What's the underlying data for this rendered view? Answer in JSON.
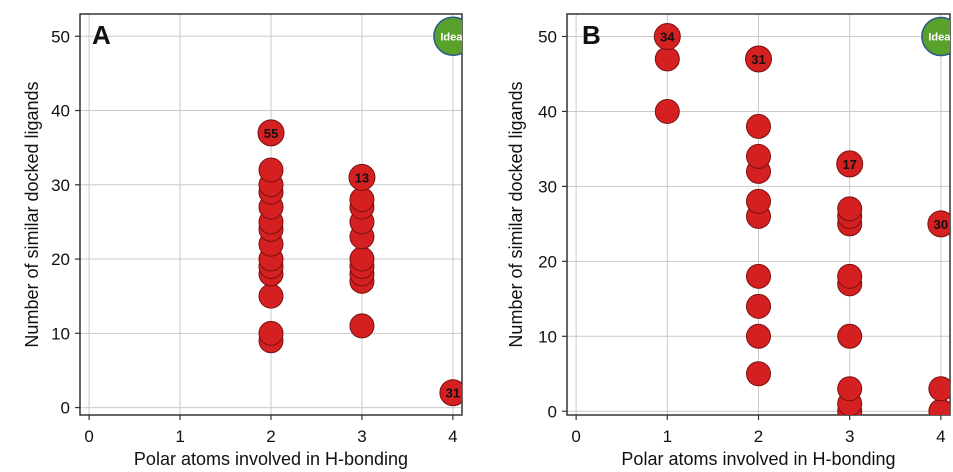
{
  "chart_data": [
    {
      "type": "scatter",
      "panel_label": "A",
      "xlabel": "Polar atoms involved in H-bonding",
      "ylabel": "Number of similar docked ligands",
      "xlim": [
        -0.1,
        4.1
      ],
      "ylim": [
        -1,
        53
      ],
      "xticks": [
        "0",
        "1",
        "2",
        "3",
        "4"
      ],
      "yticks": [
        "0",
        "10",
        "20",
        "30",
        "40",
        "50"
      ],
      "grid": true,
      "colors": {
        "points": "#d42020",
        "ideal": "#5aa12c",
        "grid": "#c9c9c9",
        "frame": "#333333"
      },
      "ideal": {
        "x": 4,
        "y": 50,
        "label": "Ideal"
      },
      "points": [
        {
          "x": 2,
          "y": 9
        },
        {
          "x": 2,
          "y": 10
        },
        {
          "x": 2,
          "y": 15
        },
        {
          "x": 2,
          "y": 18
        },
        {
          "x": 2,
          "y": 19
        },
        {
          "x": 2,
          "y": 20
        },
        {
          "x": 2,
          "y": 22
        },
        {
          "x": 2,
          "y": 24
        },
        {
          "x": 2,
          "y": 25
        },
        {
          "x": 2,
          "y": 27
        },
        {
          "x": 2,
          "y": 29
        },
        {
          "x": 2,
          "y": 30
        },
        {
          "x": 2,
          "y": 32
        },
        {
          "x": 3,
          "y": 11
        },
        {
          "x": 3,
          "y": 17
        },
        {
          "x": 3,
          "y": 18
        },
        {
          "x": 3,
          "y": 19
        },
        {
          "x": 3,
          "y": 20
        },
        {
          "x": 3,
          "y": 23
        },
        {
          "x": 3,
          "y": 25
        },
        {
          "x": 3,
          "y": 27
        },
        {
          "x": 3,
          "y": 28
        }
      ],
      "labeled_points": [
        {
          "x": 2,
          "y": 37,
          "label": "55"
        },
        {
          "x": 3,
          "y": 31,
          "label": "13"
        },
        {
          "x": 4,
          "y": 2,
          "label": "31"
        }
      ]
    },
    {
      "type": "scatter",
      "panel_label": "B",
      "xlabel": "Polar atoms involved in H-bonding",
      "ylabel": "Number of similar docked ligands",
      "xlim": [
        -0.1,
        4.1
      ],
      "ylim": [
        -0.5,
        53
      ],
      "xticks": [
        "0",
        "1",
        "2",
        "3",
        "4"
      ],
      "yticks": [
        "0",
        "10",
        "20",
        "30",
        "40",
        "50"
      ],
      "grid": true,
      "colors": {
        "points": "#d42020",
        "ideal": "#5aa12c",
        "grid": "#c9c9c9",
        "frame": "#333333"
      },
      "ideal": {
        "x": 4,
        "y": 50,
        "label": "Ideal"
      },
      "points": [
        {
          "x": 1,
          "y": 40
        },
        {
          "x": 1,
          "y": 47
        },
        {
          "x": 2,
          "y": 5
        },
        {
          "x": 2,
          "y": 10
        },
        {
          "x": 2,
          "y": 14
        },
        {
          "x": 2,
          "y": 18
        },
        {
          "x": 2,
          "y": 26
        },
        {
          "x": 2,
          "y": 28
        },
        {
          "x": 2,
          "y": 32
        },
        {
          "x": 2,
          "y": 34
        },
        {
          "x": 2,
          "y": 38
        },
        {
          "x": 3,
          "y": 0
        },
        {
          "x": 3,
          "y": 1
        },
        {
          "x": 3,
          "y": 3
        },
        {
          "x": 3,
          "y": 10
        },
        {
          "x": 3,
          "y": 17
        },
        {
          "x": 3,
          "y": 18
        },
        {
          "x": 3,
          "y": 25
        },
        {
          "x": 3,
          "y": 26
        },
        {
          "x": 3,
          "y": 27
        },
        {
          "x": 4,
          "y": 0
        },
        {
          "x": 4,
          "y": 3
        }
      ],
      "labeled_points": [
        {
          "x": 1,
          "y": 50,
          "label": "34"
        },
        {
          "x": 2,
          "y": 47,
          "label": "31"
        },
        {
          "x": 3,
          "y": 33,
          "label": "17"
        },
        {
          "x": 4,
          "y": 25,
          "label": "30"
        }
      ]
    }
  ]
}
